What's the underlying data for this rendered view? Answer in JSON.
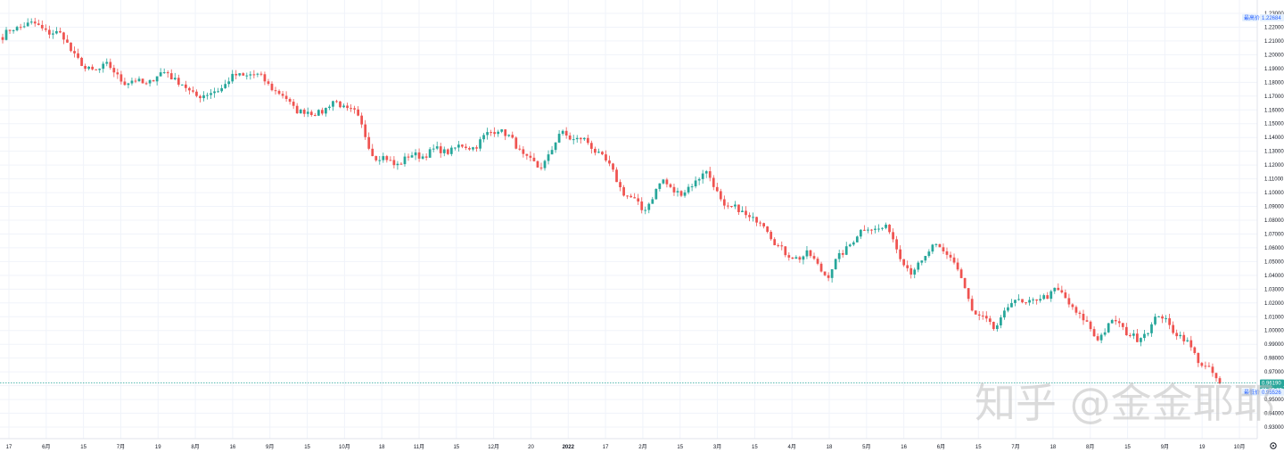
{
  "chart_data": {
    "type": "candlestick",
    "instrument_hint": "EUR/USD daily",
    "y_axis": {
      "ylim": [
        0.93,
        1.235
      ],
      "ticks": [
        "0.93000",
        "0.94000",
        "0.95000",
        "0.96000",
        "0.97000",
        "0.98000",
        "0.99000",
        "1.00000",
        "1.01000",
        "1.02000",
        "1.03000",
        "1.04000",
        "1.05000",
        "1.06000",
        "1.07000",
        "1.08000",
        "1.09000",
        "1.10000",
        "1.11000",
        "1.12000",
        "1.13000",
        "1.14000",
        "1.15000",
        "1.16000",
        "1.17000",
        "1.18000",
        "1.19000",
        "1.20000",
        "1.21000",
        "1.22000",
        "1.23000"
      ]
    },
    "x_axis": {
      "labels": [
        "17",
        "6月",
        "15",
        "7月",
        "19",
        "8月",
        "16",
        "9月",
        "15",
        "10月",
        "18",
        "11月",
        "15",
        "12月",
        "20",
        "2022",
        "17",
        "2月",
        "15",
        "3月",
        "15",
        "4月",
        "18",
        "5月",
        "16",
        "6月",
        "15",
        "7月",
        "18",
        "8月",
        "15",
        "9月",
        "19",
        "10月"
      ],
      "bold_label": "2022"
    },
    "anchors": [
      1.213,
      1.223,
      1.219,
      1.212,
      1.188,
      1.192,
      1.18,
      1.18,
      1.188,
      1.173,
      1.17,
      1.182,
      1.187,
      1.178,
      1.163,
      1.156,
      1.165,
      1.16,
      1.127,
      1.121,
      1.127,
      1.13,
      1.132,
      1.135,
      1.148,
      1.132,
      1.116,
      1.142,
      1.139,
      1.128,
      1.103,
      1.087,
      1.108,
      1.098,
      1.117,
      1.09,
      1.085,
      1.075,
      1.053,
      1.055,
      1.04,
      1.063,
      1.076,
      1.072,
      1.04,
      1.06,
      1.055,
      1.015,
      1.001,
      1.022,
      1.02,
      1.03,
      1.015,
      0.995,
      1.007,
      0.992,
      1.011,
      0.998,
      0.979,
      0.961
    ],
    "badges": {
      "high_label": "最高价",
      "high_price": "1.22684",
      "current_price": "0.96190",
      "countdown": "11:15:29",
      "low_label": "最低价",
      "low_price": "0.95526"
    },
    "colors": {
      "up": "#26a69a",
      "down": "#ef5350",
      "price_line": "#26a69a",
      "grid": "#f0f3fa"
    },
    "grid": true
  },
  "watermark": "知乎 @金金耶耶"
}
